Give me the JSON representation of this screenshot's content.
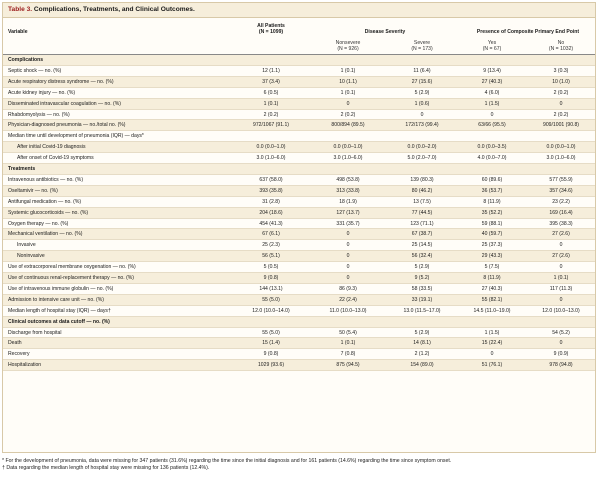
{
  "title": {
    "number": "Table 3.",
    "text": "Complications, Treatments, and Clinical Outcomes."
  },
  "header": {
    "variable": "Variable",
    "all_patients": "All Patients",
    "all_patients_n": "(N = 1099)",
    "disease_severity": "Disease Severity",
    "composite_endpoint": "Presence of Composite Primary End Point",
    "nonsevere": "Nonsevere",
    "nonsevere_n": "(N = 926)",
    "severe": "Severe",
    "severe_n": "(N = 173)",
    "yes": "Yes",
    "yes_n": "(N = 67)",
    "no": "No",
    "no_n": "(N = 1032)"
  },
  "sections": {
    "complications": "Complications",
    "treatments": "Treatments",
    "outcomes": "Clinical outcomes at data cutoff — no. (%)"
  },
  "rows": [
    [
      "Septic shock — no. (%)",
      "12 (1.1)",
      "1 (0.1)",
      "11 (6.4)",
      "9 (13.4)",
      "3 (0.3)"
    ],
    [
      "Acute respiratory distress syndrome — no. (%)",
      "37 (3.4)",
      "10 (1.1)",
      "27 (15.6)",
      "27 (40.3)",
      "10 (1.0)"
    ],
    [
      "Acute kidney injury — no. (%)",
      "6 (0.5)",
      "1 (0.1)",
      "5 (2.9)",
      "4 (6.0)",
      "2 (0.2)"
    ],
    [
      "Disseminated intravascular coagulation — no. (%)",
      "1 (0.1)",
      "0",
      "1 (0.6)",
      "1 (1.5)",
      "0"
    ],
    [
      "Rhabdomyolysis — no. (%)",
      "2 (0.2)",
      "2 (0.2)",
      "0",
      "0",
      "2 (0.2)"
    ],
    [
      "Physician-diagnosed pneumonia — no./total no. (%)",
      "972/1067 (91.1)",
      "800/894 (89.5)",
      "172/173 (99.4)",
      "63/66 (95.5)",
      "909/1001 (90.8)"
    ],
    [
      "Median time until development of pneumonia (IQR) — days*",
      "",
      "",
      "",
      "",
      ""
    ],
    [
      "After initial Covid-19 diagnosis",
      "0.0 (0.0–1.0)",
      "0.0 (0.0–1.0)",
      "0.0 (0.0–2.0)",
      "0.0 (0.0–3.5)",
      "0.0 (0.0–1.0)"
    ],
    [
      "After onset of Covid-19 symptoms",
      "3.0 (1.0–6.0)",
      "3.0 (1.0–6.0)",
      "5.0 (2.0–7.0)",
      "4.0 (0.0–7.0)",
      "3.0 (1.0–6.0)"
    ],
    [
      "Intravenous antibiotics — no. (%)",
      "637 (58.0)",
      "498 (53.8)",
      "139 (80.3)",
      "60 (89.6)",
      "577 (55.9)"
    ],
    [
      "Oseltamivir — no. (%)",
      "393 (35.8)",
      "313 (33.8)",
      "80 (46.2)",
      "36 (53.7)",
      "357 (34.6)"
    ],
    [
      "Antifungal medication — no. (%)",
      "31 (2.8)",
      "18 (1.9)",
      "13 (7.5)",
      "8 (11.9)",
      "23 (2.2)"
    ],
    [
      "Systemic glucocorticoids — no. (%)",
      "204 (18.6)",
      "127 (13.7)",
      "77 (44.5)",
      "35 (52.2)",
      "169 (16.4)"
    ],
    [
      "Oxygen therapy — no. (%)",
      "454 (41.3)",
      "331 (35.7)",
      "123 (71.1)",
      "59 (88.1)",
      "395 (38.3)"
    ],
    [
      "Mechanical ventilation — no. (%)",
      "67 (6.1)",
      "0",
      "67 (38.7)",
      "40 (59.7)",
      "27 (2.6)"
    ],
    [
      "Invasive",
      "25 (2.3)",
      "0",
      "25 (14.5)",
      "25 (37.3)",
      "0"
    ],
    [
      "Noninvasive",
      "56 (5.1)",
      "0",
      "56 (32.4)",
      "29 (43.3)",
      "27 (2.6)"
    ],
    [
      "Use of extracorporeal membrane oxygenation — no. (%)",
      "5 (0.5)",
      "0",
      "5 (2.9)",
      "5 (7.5)",
      "0"
    ],
    [
      "Use of continuous renal-replacement therapy — no. (%)",
      "9 (0.8)",
      "0",
      "9 (5.2)",
      "8 (11.9)",
      "1 (0.1)"
    ],
    [
      "Use of intravenous immune globulin — no. (%)",
      "144 (13.1)",
      "86 (9.3)",
      "58 (33.5)",
      "27 (40.3)",
      "117 (11.3)"
    ],
    [
      "Admission to intensive care unit — no. (%)",
      "55 (5.0)",
      "22 (2.4)",
      "33 (19.1)",
      "55 (82.1)",
      "0"
    ],
    [
      "Median length of hospital stay (IQR) — days†",
      "12.0 (10.0–14.0)",
      "11.0 (10.0–13.0)",
      "13.0 (11.5–17.0)",
      "14.5 (11.0–19.0)",
      "12.0 (10.0–13.0)"
    ],
    [
      "Discharge from hospital",
      "55 (5.0)",
      "50 (5.4)",
      "5 (2.9)",
      "1 (1.5)",
      "54 (5.2)"
    ],
    [
      "Death",
      "15 (1.4)",
      "1 (0.1)",
      "14 (8.1)",
      "15 (22.4)",
      "0"
    ],
    [
      "Recovery",
      "9 (0.8)",
      "7 (0.8)",
      "2 (1.2)",
      "0",
      "9 (0.9)"
    ],
    [
      "Hospitalization",
      "1029 (93.6)",
      "875 (94.5)",
      "154 (89.0)",
      "51 (76.1)",
      "978 (94.8)"
    ]
  ],
  "footnotes": {
    "star": "* For the development of pneumonia, data were missing for 347 patients (31.6%) regarding the time since the initial diagnosis and for 161 patients (14.6%) regarding the time since symptom onset.",
    "dagger": "† Data regarding the median length of hospital stay were missing for 136 patients (12.4%)."
  }
}
